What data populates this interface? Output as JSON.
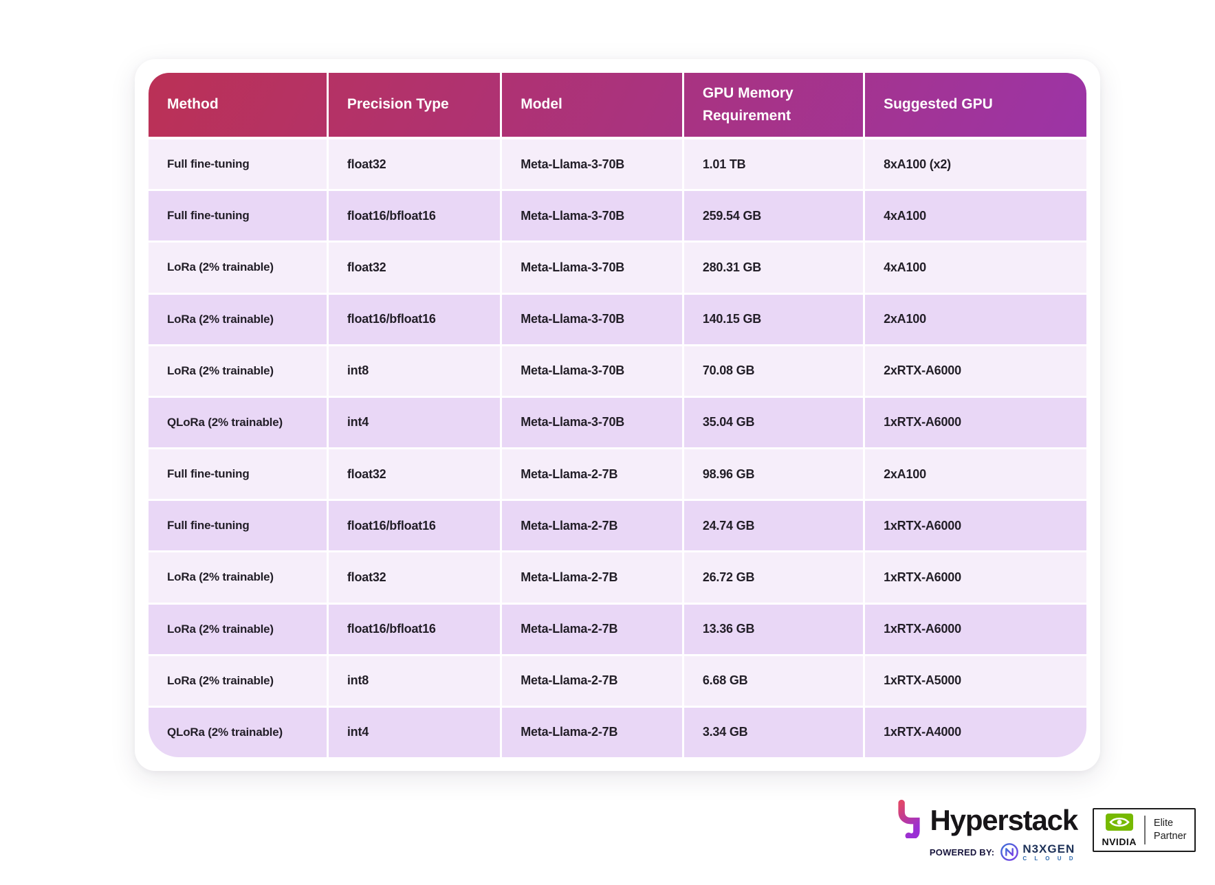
{
  "chart_data": {
    "type": "table",
    "columns": [
      "Method",
      "Precision Type",
      "Model",
      "GPU Memory Requirement",
      "Suggested GPU"
    ],
    "rows": [
      [
        "Full fine-tuning",
        "float32",
        "Meta-Llama-3-70B",
        "1.01 TB",
        "8xA100 (x2)"
      ],
      [
        "Full fine-tuning",
        "float16/bfloat16",
        "Meta-Llama-3-70B",
        "259.54 GB",
        "4xA100"
      ],
      [
        "LoRa (2% trainable)",
        "float32",
        "Meta-Llama-3-70B",
        "280.31 GB",
        "4xA100"
      ],
      [
        "LoRa (2% trainable)",
        "float16/bfloat16",
        "Meta-Llama-3-70B",
        "140.15 GB",
        "2xA100"
      ],
      [
        "LoRa (2% trainable)",
        "int8",
        "Meta-Llama-3-70B",
        "70.08 GB",
        "2xRTX-A6000"
      ],
      [
        "QLoRa (2% trainable)",
        "int4",
        "Meta-Llama-3-70B",
        "35.04 GB",
        "1xRTX-A6000"
      ],
      [
        "Full fine-tuning",
        "float32",
        "Meta-Llama-2-7B",
        "98.96 GB",
        "2xA100"
      ],
      [
        "Full fine-tuning",
        "float16/bfloat16",
        "Meta-Llama-2-7B",
        "24.74 GB",
        "1xRTX-A6000"
      ],
      [
        "LoRa (2% trainable)",
        "float32",
        "Meta-Llama-2-7B",
        "26.72 GB",
        "1xRTX-A6000"
      ],
      [
        "LoRa (2% trainable)",
        "float16/bfloat16",
        "Meta-Llama-2-7B",
        "13.36 GB",
        "1xRTX-A6000"
      ],
      [
        "LoRa (2% trainable)",
        "int8",
        "Meta-Llama-2-7B",
        "6.68 GB",
        "1xRTX-A5000"
      ],
      [
        "QLoRa (2% trainable)",
        "int4",
        "Meta-Llama-2-7B",
        "3.34 GB",
        "1xRTX-A4000"
      ]
    ],
    "legend_position": "none",
    "grid": "white 3px separators, alternating row tint"
  },
  "branding": {
    "hyperstack": "Hyperstack",
    "powered_by": "POWERED BY:",
    "n3xgen": "N3XGEN",
    "n3xgen_sub": "C L O U D",
    "nvidia": "NVIDIA",
    "partner_line1": "Elite",
    "partner_line2": "Partner"
  },
  "colors": {
    "header_gradient_left": "#bb3156",
    "header_gradient_right": "#9c34a6",
    "row_light": "#f6eefa",
    "row_dark": "#e9d7f6",
    "cell_text": "#221e27",
    "header_text": "#ffffff",
    "nvidia_green": "#76b900",
    "logo_gradient_top": "#e0476a",
    "logo_gradient_bottom": "#9a2fd4"
  }
}
